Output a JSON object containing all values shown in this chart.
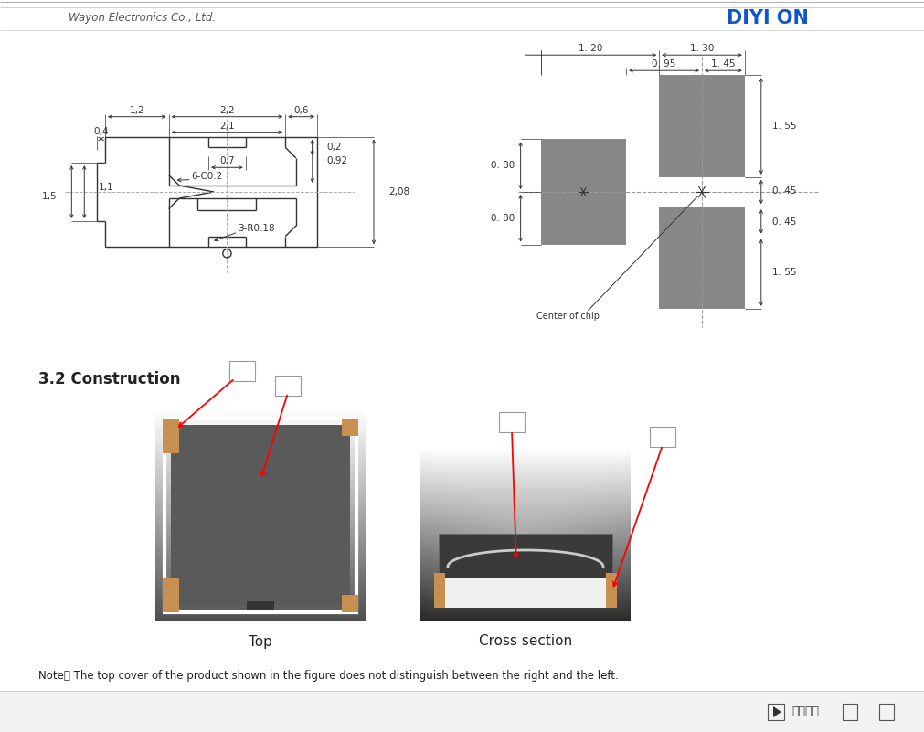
{
  "bg_color": "#ffffff",
  "header_text": "Wayon Electronics Co., Ltd.",
  "section_title": "3.2 Construction",
  "top_label": "Top",
  "cross_label": "Cross section",
  "note_text": "Note： The top cover of the product shown in the figure does not distinguish between the right and the left.",
  "bottom_bar_text": "我的视频",
  "dim_color": "#333333"
}
